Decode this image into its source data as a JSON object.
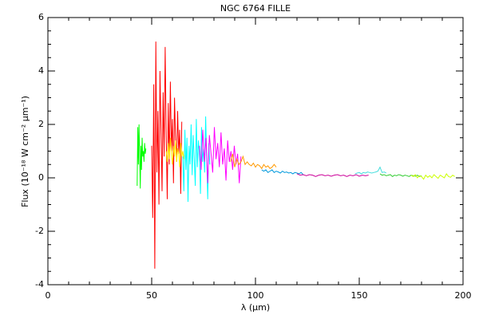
{
  "chart_data": {
    "type": "line",
    "title": "NGC 6764    FILLE",
    "xlabel": "λ (μm)",
    "ylabel": "Flux (10⁻¹⁸ W cm⁻² μm⁻¹)",
    "xlim": [
      0,
      200
    ],
    "xticks": [
      0,
      50,
      100,
      150,
      200
    ],
    "xminorticks": [
      10,
      20,
      30,
      40,
      60,
      70,
      80,
      90,
      110,
      120,
      130,
      140,
      160,
      170,
      180,
      190
    ],
    "ylim": [
      -4,
      6
    ],
    "yticks": [
      -4,
      -2,
      0,
      2,
      4,
      6
    ],
    "yminorticks": [
      -3.5,
      -3,
      -2.5,
      -1.5,
      -1,
      -0.5,
      0.5,
      1,
      1.5,
      2.5,
      3,
      3.5,
      4.5,
      5,
      5.5
    ],
    "series": [
      {
        "color": "#00ff00",
        "x": [
          43,
          43.3,
          43.6,
          43.9,
          44.2,
          44.5,
          44.8,
          45.1,
          45.4,
          45.7,
          46,
          46.3,
          46.6,
          46.9,
          47.2
        ],
        "values": [
          -0.3,
          1.9,
          0.5,
          2.0,
          0.9,
          -0.4,
          1.2,
          0.3,
          1.5,
          0.8,
          1.0,
          0.6,
          1.3,
          0.9,
          1.1
        ]
      },
      {
        "color": "#ff0000",
        "x": [
          50,
          50.5,
          51,
          51.5,
          52,
          52.5,
          53,
          53.5,
          54,
          54.5,
          55,
          55.5,
          56,
          56.5,
          57,
          57.5,
          58,
          58.5,
          59,
          59.5,
          60,
          60.5,
          61,
          61.5,
          62,
          62.5,
          63,
          63.5,
          64,
          64.5
        ],
        "values": [
          1.2,
          -1.5,
          3.5,
          -3.4,
          5.1,
          0.2,
          2.5,
          -1.0,
          4.0,
          1.8,
          -0.5,
          3.2,
          0.8,
          4.9,
          1.5,
          -0.8,
          2.8,
          0.5,
          3.6,
          1.0,
          2.2,
          -0.2,
          3.0,
          1.4,
          0.6,
          2.5,
          0.9,
          1.8,
          -0.6,
          2.1
        ]
      },
      {
        "color": "#ffee00",
        "x": [
          57,
          57.5,
          58,
          58.5,
          59,
          59.5,
          60,
          60.5,
          61,
          61.5,
          62,
          62.5,
          63,
          63.5,
          64,
          64.5,
          65,
          65.5,
          66
        ],
        "values": [
          1.0,
          0.6,
          1.3,
          0.7,
          1.5,
          0.9,
          0.5,
          1.2,
          0.8,
          1.4,
          0.6,
          1.1,
          0.9,
          0.4,
          1.3,
          0.8,
          1.0,
          0.7,
          1.1
        ]
      },
      {
        "color": "#00ffff",
        "x": [
          65,
          65.5,
          66,
          66.5,
          67,
          67.5,
          68,
          68.5,
          69,
          69.5,
          70,
          70.5,
          71,
          71.5,
          72,
          72.5,
          73,
          73.5,
          74,
          74.5,
          75,
          75.5,
          76,
          76.5,
          77,
          77.5,
          78
        ],
        "values": [
          0.8,
          -0.5,
          1.8,
          0.3,
          1.5,
          -0.9,
          1.2,
          0.5,
          2.0,
          0.1,
          1.6,
          0.7,
          -0.3,
          2.2,
          0.4,
          1.4,
          0.9,
          -0.6,
          1.9,
          0.6,
          1.1,
          0.2,
          2.3,
          0.7,
          -0.8,
          1.3,
          0.5
        ]
      },
      {
        "color": "#ff00ff",
        "x": [
          73,
          73.8,
          74.6,
          75.4,
          76.2,
          77,
          77.8,
          78.6,
          79.4,
          80.2,
          81,
          81.8,
          82.6,
          83.4,
          84.2,
          85,
          85.8,
          86.6,
          87.4,
          88.2,
          89,
          89.8,
          90.6,
          91.4,
          92.2,
          93
        ],
        "values": [
          1.2,
          0.3,
          1.8,
          0.6,
          1.5,
          -0.2,
          1.6,
          0.9,
          0.2,
          1.9,
          0.7,
          1.3,
          0.4,
          1.7,
          0.5,
          1.1,
          -0.1,
          1.4,
          0.6,
          1.0,
          0.3,
          1.2,
          0.5,
          0.9,
          -0.2,
          0.8
        ]
      },
      {
        "color": "#ff9900",
        "x": [
          88,
          89,
          90,
          91,
          92,
          93,
          94,
          95,
          96,
          97,
          98,
          99,
          100,
          101,
          102,
          103,
          104,
          105,
          106,
          107,
          108,
          109,
          110
        ],
        "values": [
          0.6,
          0.9,
          0.4,
          0.7,
          0.5,
          0.6,
          0.8,
          0.5,
          0.6,
          0.5,
          0.45,
          0.55,
          0.4,
          0.5,
          0.45,
          0.35,
          0.5,
          0.4,
          0.45,
          0.35,
          0.4,
          0.5,
          0.4
        ]
      },
      {
        "color": "#0099dd",
        "x": [
          103,
          104,
          105,
          106,
          107,
          108,
          109,
          110,
          111,
          112,
          113,
          114,
          115,
          116,
          117,
          118,
          119,
          120,
          121,
          122,
          123
        ],
        "values": [
          0.3,
          0.25,
          0.3,
          0.2,
          0.25,
          0.3,
          0.2,
          0.25,
          0.22,
          0.18,
          0.25,
          0.2,
          0.22,
          0.18,
          0.2,
          0.15,
          0.2,
          0.18,
          0.15,
          0.2,
          0.12
        ]
      },
      {
        "color": "#cc0099",
        "x": [
          120,
          121.5,
          123,
          124.5,
          126,
          127.5,
          129,
          130.5,
          132,
          133.5,
          135,
          136.5,
          138,
          139.5,
          141,
          142.5,
          144,
          145.5,
          147,
          148.5,
          150,
          151.5,
          153,
          154.5
        ],
        "values": [
          0.15,
          0.1,
          0.12,
          0.08,
          0.12,
          0.1,
          0.05,
          0.1,
          0.12,
          0.08,
          0.1,
          0.06,
          0.1,
          0.12,
          0.08,
          0.1,
          0.05,
          0.1,
          0.08,
          0.12,
          0.06,
          0.1,
          0.08,
          0.1
        ]
      },
      {
        "color": "#44dddd",
        "x": [
          148,
          149,
          150,
          151,
          152,
          153,
          154,
          155,
          156,
          157,
          158,
          159,
          160,
          161,
          162,
          163
        ],
        "values": [
          0.15,
          0.18,
          0.2,
          0.15,
          0.2,
          0.18,
          0.22,
          0.2,
          0.18,
          0.2,
          0.22,
          0.25,
          0.4,
          0.2,
          0.22,
          0.18
        ]
      },
      {
        "color": "#33cc33",
        "x": [
          160,
          161,
          162,
          163,
          164,
          165,
          166,
          167,
          168,
          169,
          170,
          171,
          172,
          173,
          174,
          175,
          176,
          177,
          178,
          179,
          180
        ],
        "values": [
          0.15,
          0.1,
          0.12,
          0.08,
          0.1,
          0.12,
          0.05,
          0.1,
          0.08,
          0.12,
          0.1,
          0.06,
          0.1,
          0.08,
          0.05,
          0.1,
          0.08,
          0.06,
          0.1,
          0.05,
          0.08
        ]
      },
      {
        "color": "#ccff00",
        "x": [
          175,
          176,
          177,
          178,
          179,
          180,
          181,
          182,
          183,
          184,
          185,
          186,
          187,
          188,
          189,
          190,
          191,
          192,
          193,
          194,
          195,
          196
        ],
        "values": [
          0.1,
          0.05,
          0.12,
          0.0,
          0.08,
          0.05,
          -0.05,
          0.1,
          0.02,
          0.08,
          0.0,
          0.12,
          0.05,
          -0.02,
          0.1,
          0.05,
          0.0,
          0.15,
          0.05,
          0.02,
          0.1,
          0.05
        ]
      }
    ]
  }
}
